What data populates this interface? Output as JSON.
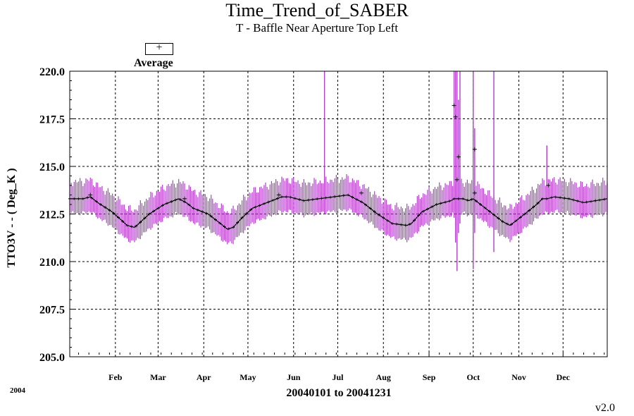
{
  "chart_data": {
    "type": "line",
    "title": "Time_Trend_of_SABER",
    "subtitle": "T - Baffle Near Aperture Top Left",
    "xlabel": "20040101 to 20041231",
    "ylabel": "TTO3V  - - ( Deg_K )",
    "year_label": "2004",
    "version": "v2.0",
    "ylim": [
      205.0,
      220.0
    ],
    "xlim_day": [
      1,
      366
    ],
    "y_ticks": [
      "205.0",
      "207.5",
      "210.0",
      "212.5",
      "215.0",
      "217.5",
      "220.0"
    ],
    "x_ticks": [
      {
        "label": "Feb",
        "day": 32
      },
      {
        "label": "Mar",
        "day": 61
      },
      {
        "label": "Apr",
        "day": 92
      },
      {
        "label": "May",
        "day": 122
      },
      {
        "label": "Jun",
        "day": 153
      },
      {
        "label": "Jul",
        "day": 183
      },
      {
        "label": "Aug",
        "day": 214
      },
      {
        "label": "Sep",
        "day": 245
      },
      {
        "label": "Oct",
        "day": 275
      },
      {
        "label": "Nov",
        "day": 306
      },
      {
        "label": "Dec",
        "day": 336
      }
    ],
    "grid": true,
    "legend": {
      "position": "top-left",
      "marker": "+",
      "label": "Average"
    },
    "series": [
      {
        "name": "Average",
        "color": "#000000",
        "range_color": "#b040c8",
        "range_halfwidth": 0.9,
        "days": [
          1,
          10,
          15,
          20,
          30,
          40,
          45,
          48,
          55,
          65,
          75,
          80,
          85,
          95,
          105,
          108,
          112,
          118,
          125,
          135,
          145,
          150,
          160,
          170,
          180,
          190,
          200,
          205,
          210,
          220,
          230,
          233,
          240,
          250,
          260,
          262,
          265,
          268,
          272,
          275,
          280,
          290,
          295,
          300,
          310,
          318,
          322,
          325,
          330,
          340,
          350,
          366
        ],
        "values": [
          213.3,
          213.3,
          213.4,
          213.1,
          212.6,
          211.9,
          211.8,
          212.0,
          212.5,
          213.0,
          213.3,
          213.1,
          212.8,
          212.5,
          211.9,
          211.7,
          211.8,
          212.3,
          212.8,
          213.1,
          213.4,
          213.4,
          213.2,
          213.3,
          213.4,
          213.5,
          213.1,
          212.8,
          212.5,
          212.0,
          211.9,
          212.0,
          212.6,
          213.0,
          213.2,
          213.3,
          213.3,
          213.3,
          213.2,
          213.3,
          213.0,
          212.4,
          212.1,
          211.9,
          212.5,
          213.0,
          213.3,
          213.3,
          213.4,
          213.3,
          213.1,
          213.3
        ]
      }
    ],
    "spikes": [
      {
        "day": 174,
        "low": 212.5,
        "high": 220.0
      },
      {
        "day": 262,
        "low": 212.3,
        "high": 220.0
      },
      {
        "day": 263,
        "low": 211.0,
        "high": 220.0
      },
      {
        "day": 264,
        "low": 209.5,
        "high": 220.0
      },
      {
        "day": 265,
        "low": 211.5,
        "high": 218.5
      },
      {
        "day": 266,
        "low": 212.0,
        "high": 220.0
      },
      {
        "day": 275,
        "low": 209.6,
        "high": 220.0
      },
      {
        "day": 276,
        "low": 211.5,
        "high": 217.0
      },
      {
        "day": 289,
        "low": 210.5,
        "high": 220.0
      },
      {
        "day": 325,
        "low": 212.6,
        "high": 216.1
      }
    ],
    "average_points": [
      {
        "day": 15,
        "value": 213.5
      },
      {
        "day": 79,
        "value": 213.3
      },
      {
        "day": 143,
        "value": 213.5
      },
      {
        "day": 199,
        "value": 213.6
      },
      {
        "day": 262,
        "value": 218.2
      },
      {
        "day": 263,
        "value": 217.6
      },
      {
        "day": 265,
        "value": 215.5
      },
      {
        "day": 264,
        "value": 214.3
      },
      {
        "day": 276,
        "value": 215.9
      },
      {
        "day": 276,
        "value": 213.6
      },
      {
        "day": 326,
        "value": 214.0
      }
    ]
  }
}
